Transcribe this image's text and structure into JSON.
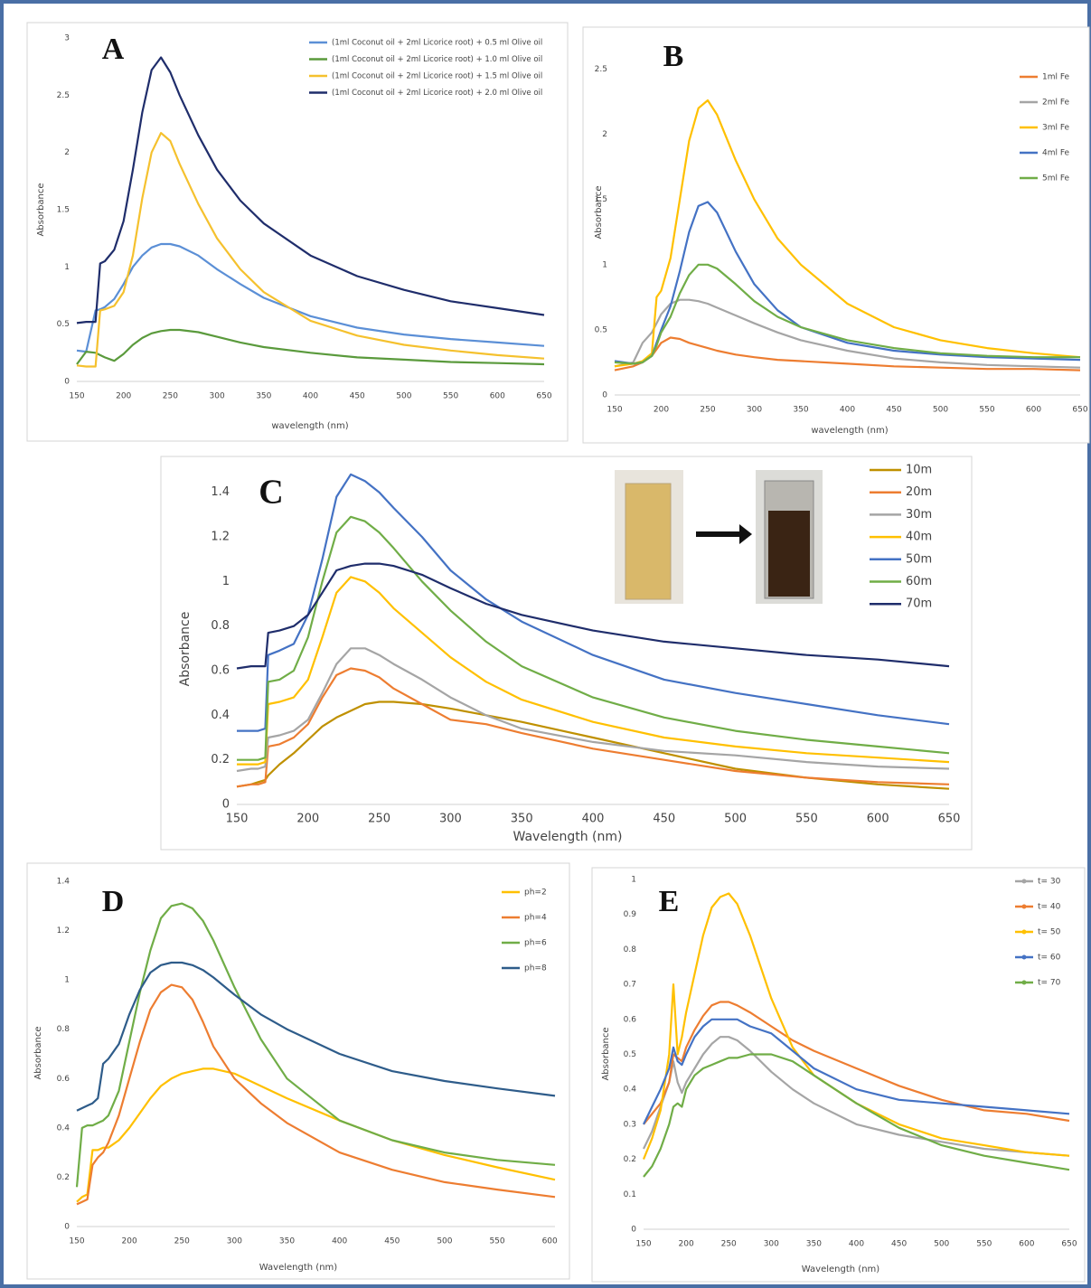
{
  "chart_data": [
    {
      "type": "line",
      "panel_label": "A",
      "xlabel": "wavelength (nm)",
      "ylabel": "Absorbance",
      "x": [
        150,
        160,
        170,
        175,
        180,
        190,
        200,
        210,
        220,
        230,
        240,
        250,
        260,
        280,
        300,
        325,
        350,
        400,
        450,
        500,
        550,
        600,
        650
      ],
      "xlim": [
        150,
        650
      ],
      "xticks": [
        150,
        200,
        250,
        300,
        350,
        400,
        450,
        500,
        550,
        600,
        650
      ],
      "ylim": [
        0,
        3
      ],
      "yticks": [
        0,
        0.5,
        1,
        1.5,
        2,
        2.5,
        3
      ],
      "series": [
        {
          "name": "(1ml Coconut oil + 2ml Licorice root) + 0.5 ml Olive oil",
          "color": "#5b8fd6",
          "values": [
            0.27,
            0.26,
            0.62,
            0.63,
            0.65,
            0.72,
            0.85,
            1.0,
            1.1,
            1.17,
            1.2,
            1.2,
            1.18,
            1.1,
            0.98,
            0.85,
            0.73,
            0.57,
            0.47,
            0.41,
            0.37,
            0.34,
            0.31
          ]
        },
        {
          "name": "(1ml Coconut oil + 2ml Licorice root) + 1.0 ml Olive oil",
          "color": "#5a9a3c",
          "values": [
            0.15,
            0.26,
            0.25,
            0.23,
            0.21,
            0.18,
            0.24,
            0.32,
            0.38,
            0.42,
            0.44,
            0.45,
            0.45,
            0.43,
            0.39,
            0.34,
            0.3,
            0.25,
            0.21,
            0.19,
            0.17,
            0.16,
            0.15
          ]
        },
        {
          "name": "(1ml Coconut oil + 2ml Licorice root) + 1.5 ml Olive oil",
          "color": "#f5c12e",
          "values": [
            0.14,
            0.13,
            0.13,
            0.62,
            0.63,
            0.66,
            0.78,
            1.1,
            1.6,
            2.0,
            2.17,
            2.1,
            1.9,
            1.55,
            1.25,
            0.98,
            0.78,
            0.53,
            0.4,
            0.32,
            0.27,
            0.23,
            0.2
          ]
        },
        {
          "name": "(1ml Coconut oil + 2ml Licorice root) + 2.0 ml Olive oil",
          "color": "#1f2d6b",
          "values": [
            0.51,
            0.52,
            0.52,
            1.03,
            1.05,
            1.15,
            1.4,
            1.85,
            2.35,
            2.72,
            2.83,
            2.7,
            2.5,
            2.15,
            1.85,
            1.58,
            1.38,
            1.1,
            0.92,
            0.8,
            0.7,
            0.64,
            0.58
          ]
        }
      ]
    },
    {
      "type": "line",
      "panel_label": "B",
      "xlabel": "wavelength (nm)",
      "ylabel": "Absorbance",
      "x": [
        150,
        170,
        180,
        190,
        195,
        200,
        210,
        220,
        230,
        240,
        250,
        260,
        280,
        300,
        325,
        350,
        400,
        450,
        500,
        550,
        600,
        650
      ],
      "xlim": [
        150,
        650
      ],
      "xticks": [
        150,
        200,
        250,
        300,
        350,
        400,
        450,
        500,
        550,
        600,
        650
      ],
      "ylim": [
        0,
        2.6
      ],
      "yticks": [
        0,
        0.5,
        1,
        1.5,
        2,
        2.5
      ],
      "series": [
        {
          "name": "1ml Fe",
          "color": "#ed7d31",
          "values": [
            0.19,
            0.22,
            0.25,
            0.3,
            0.35,
            0.4,
            0.44,
            0.43,
            0.4,
            0.38,
            0.36,
            0.34,
            0.31,
            0.29,
            0.27,
            0.26,
            0.24,
            0.22,
            0.21,
            0.2,
            0.2,
            0.19
          ]
        },
        {
          "name": "2ml Fe",
          "color": "#a5a5a5",
          "values": [
            0.22,
            0.25,
            0.4,
            0.48,
            0.55,
            0.62,
            0.7,
            0.73,
            0.73,
            0.72,
            0.7,
            0.67,
            0.61,
            0.55,
            0.48,
            0.42,
            0.34,
            0.28,
            0.25,
            0.23,
            0.22,
            0.21
          ]
        },
        {
          "name": "3ml Fe",
          "color": "#ffc000",
          "values": [
            0.22,
            0.24,
            0.26,
            0.32,
            0.75,
            0.8,
            1.05,
            1.5,
            1.95,
            2.2,
            2.26,
            2.15,
            1.8,
            1.5,
            1.2,
            1.0,
            0.7,
            0.52,
            0.42,
            0.36,
            0.32,
            0.29
          ]
        },
        {
          "name": "4ml Fe",
          "color": "#4472c4",
          "values": [
            0.26,
            0.24,
            0.25,
            0.3,
            0.4,
            0.5,
            0.68,
            0.95,
            1.25,
            1.45,
            1.48,
            1.4,
            1.1,
            0.85,
            0.65,
            0.52,
            0.4,
            0.34,
            0.31,
            0.29,
            0.28,
            0.27
          ]
        },
        {
          "name": "5ml Fe",
          "color": "#70ad47",
          "values": [
            0.25,
            0.24,
            0.25,
            0.3,
            0.38,
            0.48,
            0.6,
            0.78,
            0.92,
            1.0,
            1.0,
            0.97,
            0.85,
            0.72,
            0.6,
            0.52,
            0.42,
            0.36,
            0.32,
            0.3,
            0.29,
            0.29
          ]
        }
      ]
    },
    {
      "type": "line",
      "panel_label": "C",
      "xlabel": "Wavelength (nm)",
      "ylabel": "Absorbance",
      "x": [
        150,
        160,
        165,
        170,
        172,
        180,
        190,
        200,
        210,
        220,
        230,
        240,
        250,
        260,
        280,
        300,
        325,
        350,
        400,
        450,
        500,
        550,
        600,
        650
      ],
      "xlim": [
        150,
        650
      ],
      "xticks": [
        150,
        200,
        250,
        300,
        350,
        400,
        450,
        500,
        550,
        600,
        650
      ],
      "ylim": [
        0,
        1.5
      ],
      "yticks": [
        0,
        0.2,
        0.4,
        0.6,
        0.8,
        1,
        1.2,
        1.4
      ],
      "series": [
        {
          "name": "10m",
          "color": "#bf9000",
          "values": [
            0.08,
            0.09,
            0.1,
            0.11,
            0.13,
            0.18,
            0.23,
            0.29,
            0.35,
            0.39,
            0.42,
            0.45,
            0.46,
            0.46,
            0.45,
            0.43,
            0.4,
            0.37,
            0.3,
            0.23,
            0.16,
            0.12,
            0.09,
            0.07
          ]
        },
        {
          "name": "20m",
          "color": "#ed7d31",
          "values": [
            0.08,
            0.09,
            0.09,
            0.1,
            0.26,
            0.27,
            0.3,
            0.36,
            0.48,
            0.58,
            0.61,
            0.6,
            0.57,
            0.52,
            0.45,
            0.38,
            0.36,
            0.32,
            0.25,
            0.2,
            0.15,
            0.12,
            0.1,
            0.09
          ]
        },
        {
          "name": "30m",
          "color": "#a5a5a5",
          "values": [
            0.15,
            0.16,
            0.16,
            0.17,
            0.3,
            0.31,
            0.33,
            0.38,
            0.5,
            0.63,
            0.7,
            0.7,
            0.67,
            0.63,
            0.56,
            0.48,
            0.4,
            0.34,
            0.28,
            0.24,
            0.22,
            0.19,
            0.17,
            0.16
          ]
        },
        {
          "name": "40m",
          "color": "#ffc000",
          "values": [
            0.18,
            0.18,
            0.18,
            0.19,
            0.45,
            0.46,
            0.48,
            0.56,
            0.75,
            0.95,
            1.02,
            1.0,
            0.95,
            0.88,
            0.77,
            0.66,
            0.55,
            0.47,
            0.37,
            0.3,
            0.26,
            0.23,
            0.21,
            0.19
          ]
        },
        {
          "name": "50m",
          "color": "#4472c4",
          "values": [
            0.33,
            0.33,
            0.33,
            0.34,
            0.67,
            0.69,
            0.72,
            0.85,
            1.1,
            1.38,
            1.48,
            1.45,
            1.4,
            1.33,
            1.2,
            1.05,
            0.92,
            0.82,
            0.67,
            0.56,
            0.5,
            0.45,
            0.4,
            0.36
          ]
        },
        {
          "name": "60m",
          "color": "#70ad47",
          "values": [
            0.2,
            0.2,
            0.2,
            0.21,
            0.55,
            0.56,
            0.6,
            0.75,
            1.0,
            1.22,
            1.29,
            1.27,
            1.22,
            1.15,
            1.0,
            0.87,
            0.73,
            0.62,
            0.48,
            0.39,
            0.33,
            0.29,
            0.26,
            0.23
          ]
        },
        {
          "name": "70m",
          "color": "#1f2d6b",
          "values": [
            0.61,
            0.62,
            0.62,
            0.62,
            0.77,
            0.78,
            0.8,
            0.85,
            0.95,
            1.05,
            1.07,
            1.08,
            1.08,
            1.07,
            1.03,
            0.97,
            0.9,
            0.85,
            0.78,
            0.73,
            0.7,
            0.67,
            0.65,
            0.62
          ]
        }
      ]
    },
    {
      "type": "line",
      "panel_label": "D",
      "xlabel": "Wavelength (nm)",
      "ylabel": "Absorbance",
      "x": [
        150,
        155,
        160,
        165,
        170,
        175,
        180,
        190,
        200,
        210,
        220,
        230,
        240,
        250,
        260,
        270,
        280,
        300,
        325,
        350,
        400,
        450,
        500,
        550,
        605
      ],
      "xlim": [
        150,
        605
      ],
      "xticks": [
        150,
        200,
        250,
        300,
        350,
        400,
        450,
        500,
        550,
        600
      ],
      "ylim": [
        0,
        1.4
      ],
      "yticks": [
        0,
        0.2,
        0.4,
        0.6,
        0.8,
        1,
        1.2,
        1.4
      ],
      "series": [
        {
          "name": "ph=2",
          "color": "#ffc000",
          "values": [
            0.1,
            0.12,
            0.13,
            0.31,
            0.31,
            0.32,
            0.32,
            0.35,
            0.4,
            0.46,
            0.52,
            0.57,
            0.6,
            0.62,
            0.63,
            0.64,
            0.64,
            0.62,
            0.57,
            0.52,
            0.43,
            0.35,
            0.29,
            0.24,
            0.19
          ]
        },
        {
          "name": "ph=4",
          "color": "#ed7d31",
          "values": [
            0.09,
            0.1,
            0.11,
            0.25,
            0.28,
            0.3,
            0.34,
            0.45,
            0.6,
            0.75,
            0.88,
            0.95,
            0.98,
            0.97,
            0.92,
            0.83,
            0.73,
            0.6,
            0.5,
            0.42,
            0.3,
            0.23,
            0.18,
            0.15,
            0.12
          ]
        },
        {
          "name": "ph=6",
          "color": "#70ad47",
          "values": [
            0.16,
            0.4,
            0.41,
            0.41,
            0.42,
            0.43,
            0.45,
            0.55,
            0.75,
            0.95,
            1.12,
            1.25,
            1.3,
            1.31,
            1.29,
            1.24,
            1.16,
            0.97,
            0.76,
            0.6,
            0.43,
            0.35,
            0.3,
            0.27,
            0.25
          ]
        },
        {
          "name": "ph=8",
          "color": "#2e5c8a",
          "values": [
            0.47,
            0.48,
            0.49,
            0.5,
            0.52,
            0.66,
            0.68,
            0.74,
            0.86,
            0.96,
            1.03,
            1.06,
            1.07,
            1.07,
            1.06,
            1.04,
            1.01,
            0.94,
            0.86,
            0.8,
            0.7,
            0.63,
            0.59,
            0.56,
            0.53
          ]
        }
      ]
    },
    {
      "type": "line",
      "panel_label": "E",
      "xlabel": "Wavelength (nm)",
      "ylabel": "Absorbance",
      "legend_markers": true,
      "x": [
        150,
        160,
        170,
        180,
        185,
        190,
        195,
        200,
        210,
        220,
        230,
        240,
        250,
        260,
        275,
        300,
        325,
        350,
        400,
        450,
        500,
        550,
        600,
        650
      ],
      "xlim": [
        150,
        650
      ],
      "xticks": [
        150,
        200,
        250,
        300,
        350,
        400,
        450,
        500,
        550,
        600,
        650
      ],
      "ylim": [
        0,
        1
      ],
      "yticks": [
        0,
        0.1,
        0.2,
        0.3,
        0.4,
        0.5,
        0.6,
        0.7,
        0.8,
        0.9,
        1
      ],
      "series": [
        {
          "name": "t= 30",
          "color": "#a5a5a5",
          "values": [
            0.23,
            0.28,
            0.35,
            0.42,
            0.48,
            0.42,
            0.39,
            0.42,
            0.46,
            0.5,
            0.53,
            0.55,
            0.55,
            0.54,
            0.51,
            0.45,
            0.4,
            0.36,
            0.3,
            0.27,
            0.25,
            0.23,
            0.22,
            0.21
          ]
        },
        {
          "name": "t= 40",
          "color": "#ed7d31",
          "values": [
            0.3,
            0.33,
            0.36,
            0.42,
            0.5,
            0.49,
            0.48,
            0.52,
            0.57,
            0.61,
            0.64,
            0.65,
            0.65,
            0.64,
            0.62,
            0.58,
            0.54,
            0.51,
            0.46,
            0.41,
            0.37,
            0.34,
            0.33,
            0.31
          ]
        },
        {
          "name": "t= 50",
          "color": "#ffc000",
          "values": [
            0.2,
            0.26,
            0.34,
            0.5,
            0.7,
            0.5,
            0.55,
            0.62,
            0.73,
            0.84,
            0.92,
            0.95,
            0.96,
            0.93,
            0.84,
            0.66,
            0.52,
            0.44,
            0.36,
            0.3,
            0.26,
            0.24,
            0.22,
            0.21
          ]
        },
        {
          "name": "t= 60",
          "color": "#4472c4",
          "values": [
            0.3,
            0.35,
            0.4,
            0.46,
            0.52,
            0.48,
            0.47,
            0.5,
            0.55,
            0.58,
            0.6,
            0.6,
            0.6,
            0.6,
            0.58,
            0.56,
            0.51,
            0.46,
            0.4,
            0.37,
            0.36,
            0.35,
            0.34,
            0.33
          ]
        },
        {
          "name": "t= 70",
          "color": "#70ad47",
          "values": [
            0.15,
            0.18,
            0.23,
            0.3,
            0.35,
            0.36,
            0.35,
            0.4,
            0.44,
            0.46,
            0.47,
            0.48,
            0.49,
            0.49,
            0.5,
            0.5,
            0.48,
            0.44,
            0.36,
            0.29,
            0.24,
            0.21,
            0.19,
            0.17
          ]
        }
      ]
    }
  ]
}
